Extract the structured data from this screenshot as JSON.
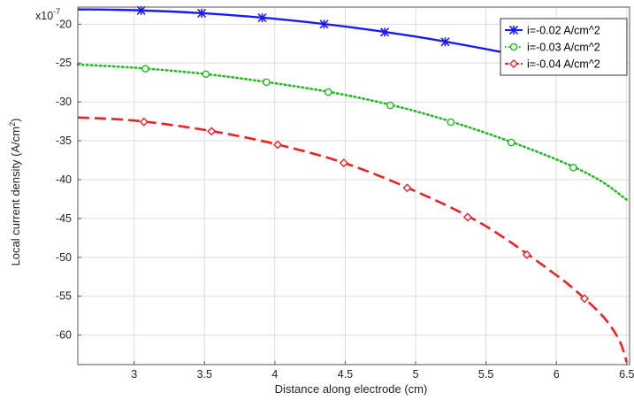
{
  "chart_data": {
    "type": "line",
    "title": "",
    "xlabel": "Distance along electrode (cm)",
    "ylabel_main": "Local current density (A/cm",
    "ylabel_sup": "2",
    "ylabel_tail": ")",
    "y_multiplier": "x10",
    "y_multiplier_exp": "-7",
    "xlim": [
      2.6,
      6.52
    ],
    "ylim": [
      -63.8,
      -17.8
    ],
    "x_ticks": [
      3,
      3.5,
      4,
      4.5,
      5,
      5.5,
      6,
      6.5
    ],
    "x_tick_labels": [
      "3",
      "3.5",
      "4",
      "4.5",
      "5",
      "5.5",
      "6",
      "6.5"
    ],
    "y_ticks": [
      -20,
      -25,
      -30,
      -35,
      -40,
      -45,
      -50,
      -55,
      -60
    ],
    "y_tick_labels": [
      "-20",
      "-25",
      "-30",
      "-35",
      "-40",
      "-45",
      "-50",
      "-55",
      "-60"
    ],
    "grid": true,
    "legend_position": "top-right",
    "series": [
      {
        "name": "i=-0.02 A/cm^2",
        "color": "#1a1aff",
        "dash": "solid",
        "marker": "asterisk",
        "x": [
          2.6,
          3.0,
          3.5,
          4.0,
          4.5,
          5.0,
          5.5,
          6.0,
          6.5
        ],
        "y": [
          -18.1,
          -18.2,
          -18.6,
          -19.3,
          -20.3,
          -21.6,
          -23.2,
          -25.0,
          -26.5
        ],
        "marker_x": [
          3.05,
          3.48,
          3.91,
          4.35,
          4.78,
          5.21
        ]
      },
      {
        "name": "i=-0.03 A/cm^2",
        "color": "#22bb22",
        "dash": "dotted",
        "marker": "circle",
        "x": [
          2.6,
          3.0,
          3.5,
          4.0,
          4.5,
          5.0,
          5.5,
          6.0,
          6.3,
          6.5
        ],
        "y": [
          -25.2,
          -25.6,
          -26.4,
          -27.6,
          -29.1,
          -31.2,
          -34.0,
          -37.4,
          -40.0,
          -42.6
        ],
        "marker_x": [
          3.08,
          3.51,
          3.94,
          4.38,
          4.82,
          5.25,
          5.68,
          6.12
        ]
      },
      {
        "name": "i=-0.04 A/cm^2",
        "color": "#ee2222",
        "dash": "dashed",
        "marker": "diamond",
        "x": [
          2.6,
          3.0,
          3.5,
          4.0,
          4.5,
          5.0,
          5.5,
          6.0,
          6.2,
          6.35,
          6.45,
          6.5
        ],
        "y": [
          -32.0,
          -32.4,
          -33.6,
          -35.4,
          -37.9,
          -41.5,
          -46.0,
          -52.3,
          -55.3,
          -58.0,
          -60.8,
          -63.5
        ],
        "marker_x": [
          3.07,
          3.55,
          4.02,
          4.49,
          4.94,
          5.37,
          5.79,
          6.2
        ]
      }
    ]
  }
}
